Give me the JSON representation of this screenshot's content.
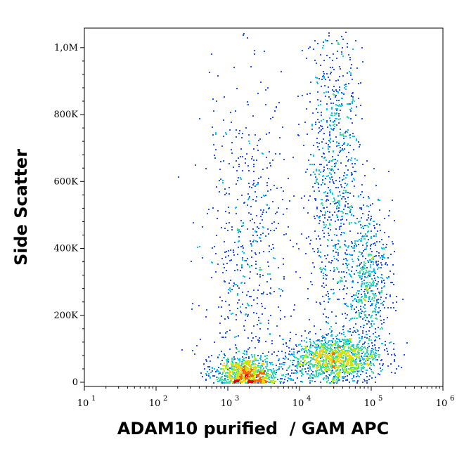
{
  "chart_data": {
    "type": "scatter",
    "title": "",
    "xlabel": "ADAM10 purified  / GAM APC",
    "ylabel": "Side Scatter",
    "x_scale": "log",
    "xlim": [
      10,
      1000000
    ],
    "ylim": [
      0,
      1050000
    ],
    "x_tick_labels": [
      {
        "base": "10",
        "exp": "1"
      },
      {
        "base": "10",
        "exp": "2"
      },
      {
        "base": "10",
        "exp": "3"
      },
      {
        "base": "10",
        "exp": "4"
      },
      {
        "base": "10",
        "exp": "5"
      },
      {
        "base": "10",
        "exp": "6"
      }
    ],
    "x_tick_values": [
      10,
      100,
      1000,
      10000,
      100000,
      1000000
    ],
    "y_tick_labels": [
      "0",
      "200K",
      "400K",
      "600K",
      "800K",
      "1,0M"
    ],
    "y_tick_values": [
      0,
      200000,
      400000,
      600000,
      800000,
      1000000
    ],
    "grid": false,
    "legend": "none",
    "color_scale": [
      "#00008b",
      "#1e50ff",
      "#00c8ff",
      "#2ee6a0",
      "#b4f000",
      "#ffd200",
      "#ff6400",
      "#e10000"
    ],
    "populations": [
      {
        "x_center": 1800,
        "y_center": 30000,
        "x_spread_decades": 0.22,
        "y_spread": 25000,
        "weight": 0.2
      },
      {
        "x_center": 30000,
        "y_center": 70000,
        "x_spread_decades": 0.32,
        "y_spread": 35000,
        "weight": 0.3
      },
      {
        "x_center": 90000,
        "y_center": 300000,
        "x_spread_decades": 0.15,
        "y_spread": 120000,
        "weight": 0.15
      },
      {
        "x_center": 30000,
        "y_center": 650000,
        "x_spread_decades": 0.18,
        "y_spread": 250000,
        "weight": 0.2
      },
      {
        "x_center": 2000,
        "y_center": 400000,
        "x_spread_decades": 0.35,
        "y_spread": 250000,
        "weight": 0.15
      }
    ]
  }
}
